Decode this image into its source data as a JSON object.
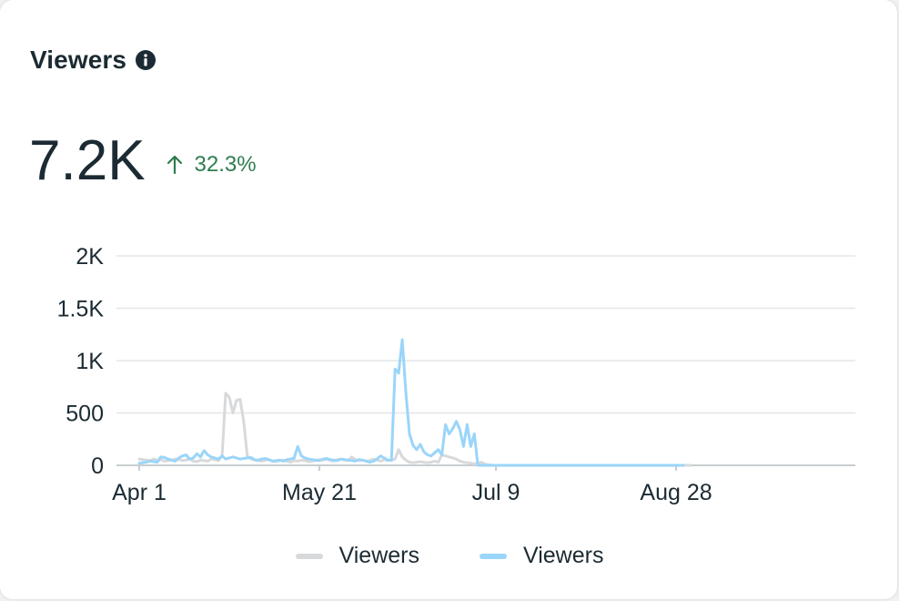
{
  "card": {
    "title": "Viewers",
    "info_icon": "info-icon",
    "metric_value": "7.2K",
    "change_icon": "arrow-up-icon",
    "change_text": "32.3%",
    "colors": {
      "positive": "#2e7d4f",
      "text": "#1c2b33",
      "grid": "#e3e6e8"
    }
  },
  "chart_data": {
    "type": "line",
    "x_start": "Apr 1",
    "x_tick_labels": [
      "Apr 1",
      "May 21",
      "Jul 9",
      "Aug 28"
    ],
    "x_tick_day_index": [
      0,
      50,
      99,
      149
    ],
    "y_tick_labels": [
      "0",
      "500",
      "1K",
      "1.5K",
      "2K"
    ],
    "y_tick_values": [
      0,
      500,
      1000,
      1500,
      2000
    ],
    "ylim": [
      0,
      2000
    ],
    "grid": true,
    "legend_position": "bottom-center",
    "series": [
      {
        "name": "Viewers",
        "color": "#d7d9db",
        "values": [
          60,
          55,
          50,
          45,
          60,
          50,
          55,
          40,
          45,
          50,
          60,
          55,
          45,
          50,
          60,
          40,
          35,
          50,
          45,
          40,
          60,
          55,
          45,
          90,
          690,
          650,
          500,
          620,
          630,
          420,
          90,
          60,
          50,
          45,
          40,
          50,
          55,
          40,
          35,
          45,
          50,
          40,
          30,
          45,
          40,
          50,
          45,
          35,
          40,
          45,
          55,
          50,
          60,
          45,
          40,
          55,
          60,
          50,
          45,
          80,
          55,
          45,
          50,
          40,
          45,
          60,
          50,
          40,
          55,
          45,
          50,
          60,
          150,
          80,
          50,
          30,
          25,
          30,
          35,
          30,
          25,
          30,
          40,
          30,
          100,
          90,
          80,
          70,
          60,
          40,
          30,
          25,
          20,
          15,
          20,
          30,
          10,
          5,
          0,
          0,
          0,
          0,
          0,
          0,
          0,
          0,
          0,
          0,
          0,
          0,
          0,
          0,
          0,
          0,
          0,
          0,
          0,
          0,
          0,
          0,
          0,
          0,
          0,
          0,
          0,
          0,
          0,
          0,
          0,
          0,
          0,
          0,
          0,
          0,
          0,
          0,
          0,
          0,
          0,
          0,
          0,
          0,
          0,
          0,
          0,
          0,
          0,
          0,
          0,
          0,
          0,
          0,
          0,
          0
        ]
      },
      {
        "name": "Viewers",
        "color": "#9ad5fa",
        "values": [
          20,
          25,
          30,
          40,
          35,
          30,
          80,
          75,
          60,
          50,
          40,
          70,
          90,
          100,
          60,
          70,
          110,
          80,
          140,
          100,
          80,
          70,
          60,
          90,
          60,
          70,
          80,
          70,
          60,
          65,
          70,
          75,
          55,
          50,
          60,
          65,
          55,
          40,
          45,
          50,
          40,
          55,
          60,
          70,
          180,
          90,
          70,
          60,
          55,
          50,
          45,
          60,
          65,
          55,
          50,
          45,
          60,
          55,
          50,
          45,
          40,
          55,
          50,
          40,
          30,
          40,
          60,
          90,
          70,
          50,
          50,
          920,
          880,
          1200,
          700,
          300,
          190,
          150,
          200,
          130,
          100,
          90,
          120,
          150,
          100,
          390,
          300,
          350,
          420,
          340,
          180,
          390,
          180,
          300,
          0,
          0,
          0,
          0,
          0,
          0,
          0,
          0,
          0,
          0,
          0,
          0,
          0,
          0,
          0,
          0,
          0,
          0,
          0,
          0,
          0,
          0,
          0,
          0,
          0,
          0,
          0,
          0,
          0,
          0,
          0,
          0,
          0,
          0,
          0,
          0,
          0,
          0,
          0,
          0,
          0,
          0,
          0,
          0,
          0,
          0,
          0,
          0,
          0,
          0,
          0,
          0,
          0,
          0,
          0,
          0,
          0,
          0
        ]
      }
    ]
  }
}
